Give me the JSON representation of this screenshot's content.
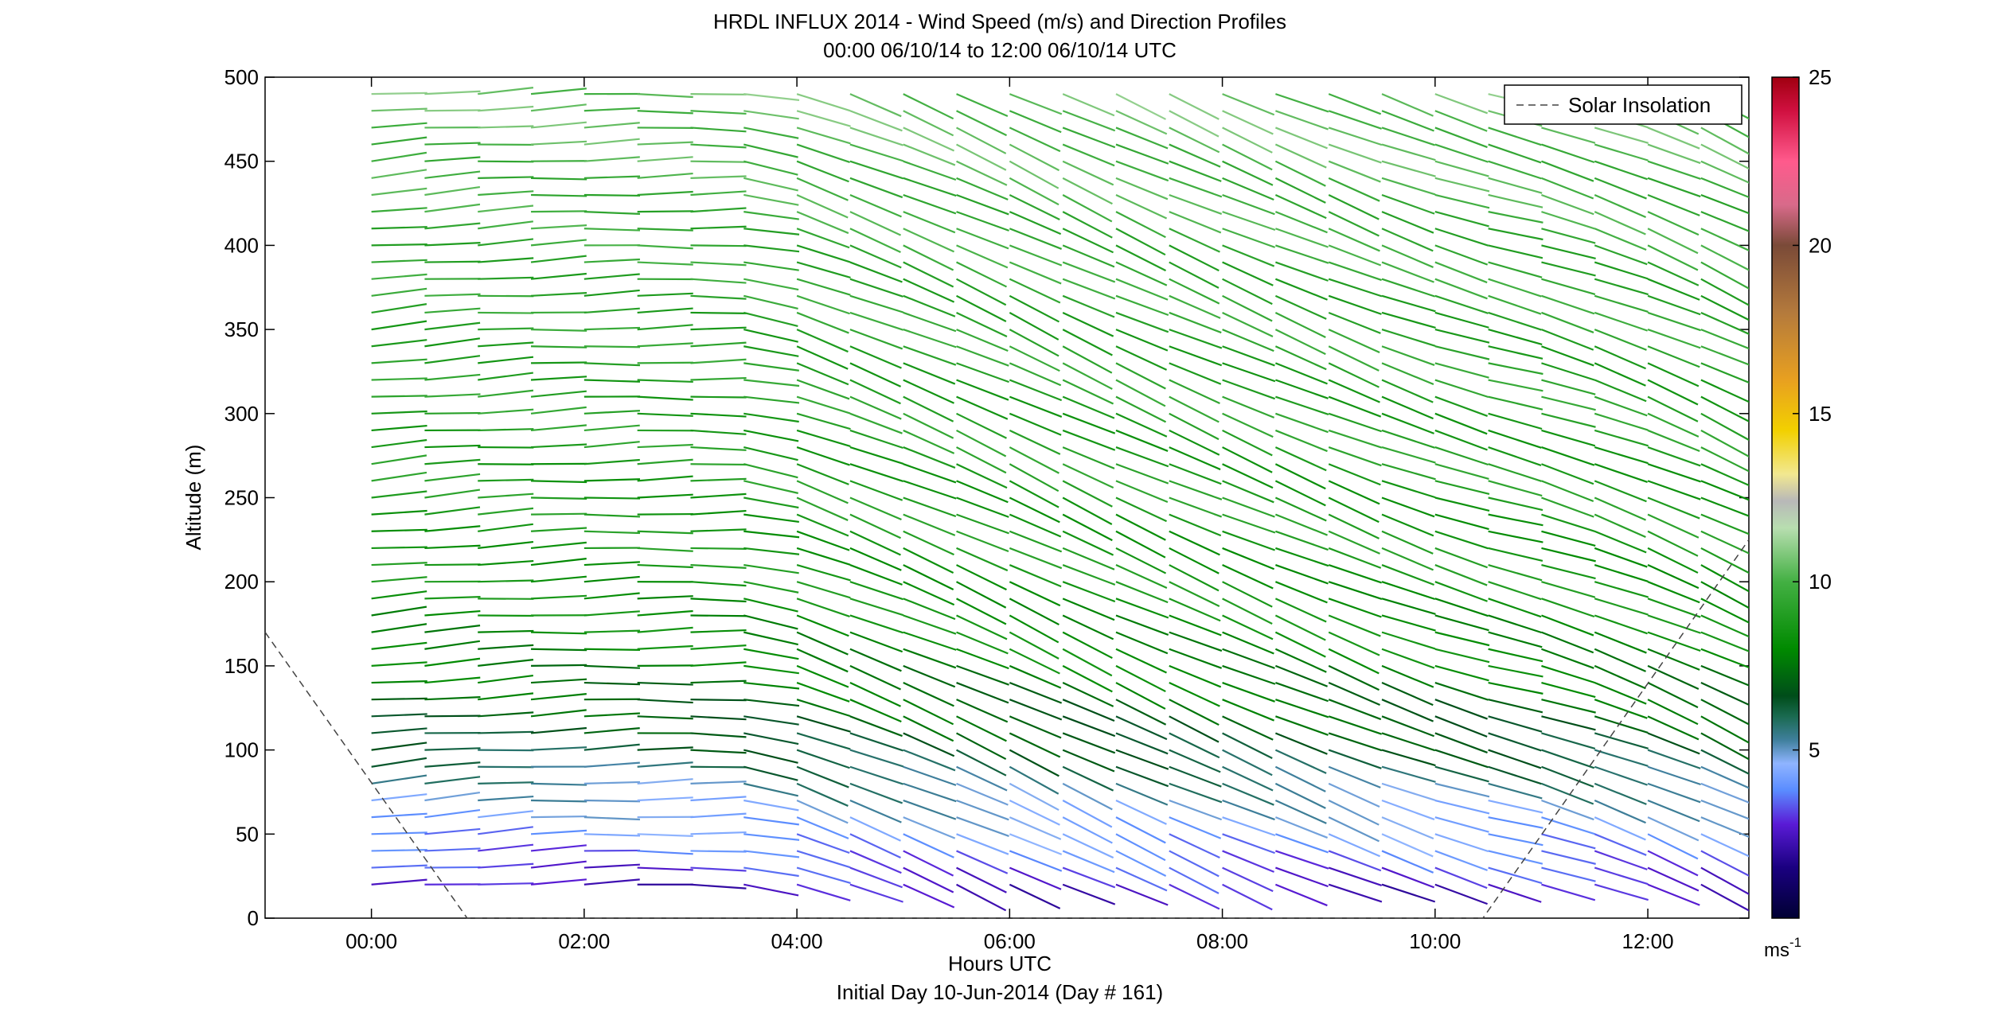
{
  "chart_data": {
    "type": "wind_barb_profile",
    "title": "HRDL INFLUX 2014 - Wind Speed (m/s) and Direction Profiles",
    "subtitle": "00:00 06/10/14 to 12:00 06/10/14  UTC",
    "xlabel": "Hours UTC",
    "xlabel2": "Initial Day 10-Jun-2014 (Day # 161)",
    "ylabel": "Altitude (m)",
    "xlim": [
      -1.0,
      12.95
    ],
    "ylim": [
      0,
      500
    ],
    "x_ticks": [
      {
        "value": 0,
        "label": "00:00"
      },
      {
        "value": 2,
        "label": "02:00"
      },
      {
        "value": 4,
        "label": "04:00"
      },
      {
        "value": 6,
        "label": "06:00"
      },
      {
        "value": 8,
        "label": "08:00"
      },
      {
        "value": 10,
        "label": "10:00"
      },
      {
        "value": 12,
        "label": "12:00"
      }
    ],
    "y_ticks": [
      {
        "value": 0,
        "label": "0"
      },
      {
        "value": 50,
        "label": "50"
      },
      {
        "value": 100,
        "label": "100"
      },
      {
        "value": 150,
        "label": "150"
      },
      {
        "value": 200,
        "label": "200"
      },
      {
        "value": 250,
        "label": "250"
      },
      {
        "value": 300,
        "label": "300"
      },
      {
        "value": 350,
        "label": "350"
      },
      {
        "value": 400,
        "label": "400"
      },
      {
        "value": 450,
        "label": "450"
      },
      {
        "value": 500,
        "label": "500"
      }
    ],
    "legend": {
      "label": "Solar Insolation",
      "placement": "top-right",
      "style": "dashed"
    },
    "colorbar": {
      "unit_label": "ms",
      "unit_exponent": "-1",
      "min": 0,
      "max": 25,
      "ticks": [
        {
          "value": 5,
          "label": "5"
        },
        {
          "value": 10,
          "label": "10"
        },
        {
          "value": 15,
          "label": "15"
        },
        {
          "value": 20,
          "label": "20"
        },
        {
          "value": 25,
          "label": "25"
        }
      ],
      "stops": [
        {
          "v": 0,
          "color": "#000033"
        },
        {
          "v": 1.5,
          "color": "#1a0080"
        },
        {
          "v": 2.8,
          "color": "#5a1bd6"
        },
        {
          "v": 3.8,
          "color": "#5a8cff"
        },
        {
          "v": 4.6,
          "color": "#8fb4ff"
        },
        {
          "v": 5.3,
          "color": "#3f7f9c"
        },
        {
          "v": 6.0,
          "color": "#1a6a50"
        },
        {
          "v": 6.6,
          "color": "#004d1a"
        },
        {
          "v": 8.0,
          "color": "#008a00"
        },
        {
          "v": 10.0,
          "color": "#43b043"
        },
        {
          "v": 11.6,
          "color": "#b8deb0"
        },
        {
          "v": 12.4,
          "color": "#b8b8b8"
        },
        {
          "v": 13.2,
          "color": "#f2e890"
        },
        {
          "v": 14.5,
          "color": "#f2d000"
        },
        {
          "v": 16.0,
          "color": "#e8a020"
        },
        {
          "v": 18.0,
          "color": "#b47a3c"
        },
        {
          "v": 20.0,
          "color": "#7a4a38"
        },
        {
          "v": 21.2,
          "color": "#d86a8a"
        },
        {
          "v": 22.5,
          "color": "#ff5a8c"
        },
        {
          "v": 24.0,
          "color": "#d01040"
        },
        {
          "v": 25.0,
          "color": "#a00010"
        }
      ]
    },
    "times": [
      0,
      0.5,
      1,
      1.5,
      2,
      2.5,
      3,
      3.5,
      4,
      4.5,
      5,
      5.5,
      6,
      6.5,
      7,
      7.5,
      8,
      8.5,
      9,
      9.5,
      10,
      10.5,
      11,
      11.5,
      12,
      12.5
    ],
    "altitudes": [
      20,
      30,
      40,
      50,
      60,
      70,
      80,
      90,
      100,
      110,
      120,
      130,
      140,
      150,
      160,
      170,
      180,
      190,
      200,
      210,
      220,
      230,
      240,
      250,
      260,
      270,
      280,
      290,
      300,
      310,
      320,
      330,
      340,
      350,
      360,
      370,
      380,
      390,
      400,
      410,
      420,
      430,
      440,
      450,
      460,
      470,
      480,
      490
    ],
    "speed_profile": {
      "altitudes": [
        20,
        30,
        40,
        50,
        60,
        70,
        80,
        90,
        100,
        120,
        140,
        160,
        200,
        250,
        300,
        350,
        400,
        450,
        490
      ],
      "speeds": [
        2.5,
        3.0,
        3.5,
        4.0,
        4.4,
        4.8,
        5.3,
        5.8,
        6.3,
        7.0,
        7.5,
        8.0,
        8.5,
        8.8,
        9.0,
        9.2,
        9.5,
        10.0,
        10.5
      ]
    },
    "direction_profile": {
      "times": [
        0,
        3,
        4,
        6,
        9,
        10.5,
        12.5
      ],
      "directions": [
        265,
        270,
        290,
        295,
        292,
        285,
        295
      ]
    },
    "solar_insolation": {
      "x": [
        -1.0,
        0.9,
        10.45,
        12.95
      ],
      "y": [
        170,
        0,
        0,
        225
      ]
    }
  }
}
